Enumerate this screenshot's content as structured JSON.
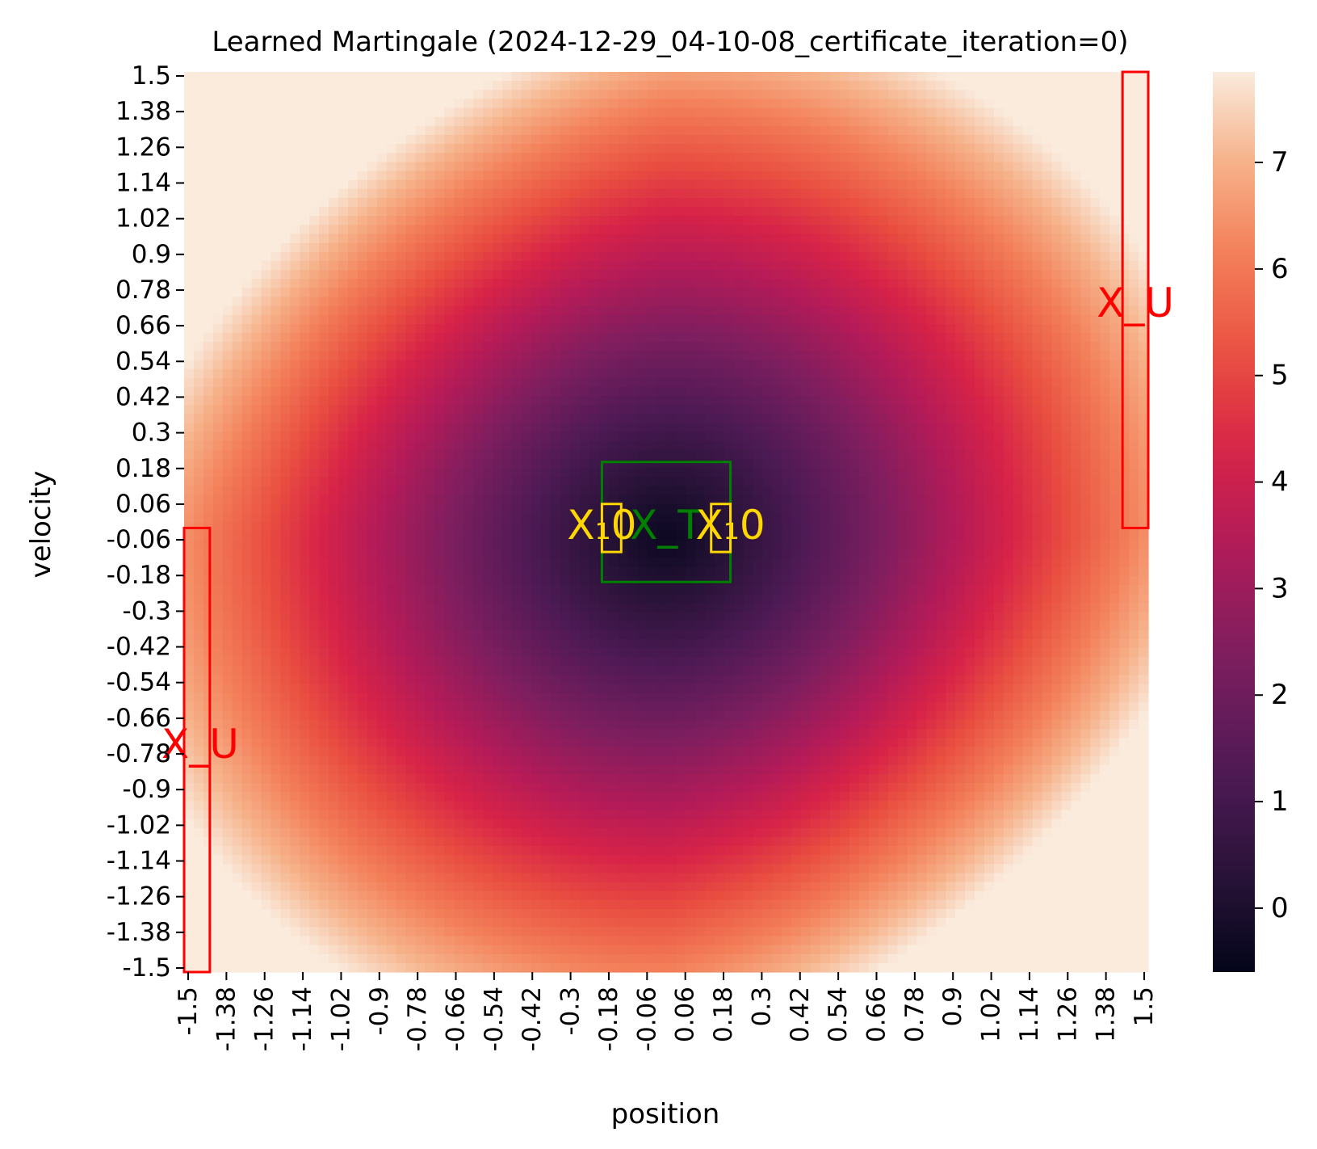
{
  "chart_data": {
    "type": "heatmap",
    "title": "Learned Martingale (2024-12-29_04-10-08_certificate_iteration=0)",
    "xlabel": "position",
    "ylabel": "velocity",
    "x_range": [
      -1.5,
      1.5
    ],
    "y_range": [
      -1.5,
      1.5
    ],
    "x_ticks": [
      "-1.5",
      "-1.38",
      "-1.26",
      "-1.14",
      "-1.02",
      "-0.9",
      "-0.78",
      "-0.66",
      "-0.54",
      "-0.42",
      "-0.3",
      "-0.18",
      "-0.06",
      "0.06",
      "0.18",
      "0.3",
      "0.42",
      "0.54",
      "0.66",
      "0.78",
      "0.9",
      "1.02",
      "1.14",
      "1.26",
      "1.38",
      "1.5"
    ],
    "y_ticks": [
      "1.5",
      "1.38",
      "1.26",
      "1.14",
      "1.02",
      "0.9",
      "0.78",
      "0.66",
      "0.54",
      "0.42",
      "0.3",
      "0.18",
      "0.06",
      "-0.06",
      "-0.18",
      "-0.3",
      "-0.42",
      "-0.54",
      "-0.66",
      "-0.78",
      "-0.9",
      "-1.02",
      "-1.14",
      "-1.26",
      "-1.38",
      "-1.5"
    ],
    "grid": false,
    "colorbar": {
      "min": -0.6,
      "max": 7.85,
      "ticks": [
        "0",
        "1",
        "2",
        "3",
        "4",
        "5",
        "6",
        "7"
      ],
      "colormap": "rocket"
    },
    "value_model": {
      "center": [
        0.0,
        -0.05
      ],
      "scale": [
        1.5,
        1.5
      ],
      "radial_amplitude": 6.8,
      "radial_exponent": 1.15,
      "diagonal_amplitude": 1.1,
      "base": -0.35
    },
    "regions": [
      {
        "label": "X_U",
        "color": "#ff0000",
        "x": [
          -1.5,
          -1.42
        ],
        "y": [
          -1.5,
          -0.02
        ],
        "label_at": [
          -1.45,
          -0.75
        ]
      },
      {
        "label": "X_U",
        "color": "#ff0000",
        "x": [
          1.42,
          1.5
        ],
        "y": [
          -0.02,
          1.5
        ],
        "label_at": [
          1.46,
          0.72
        ]
      },
      {
        "label": "X_T",
        "color": "#008000",
        "x": [
          -0.2,
          0.2
        ],
        "y": [
          -0.2,
          0.2
        ],
        "label_at": [
          0.0,
          -0.02
        ]
      },
      {
        "label": "X₁0",
        "color": "#ffd700",
        "x": [
          -0.2,
          -0.14
        ],
        "y": [
          -0.1,
          0.06
        ],
        "label_at": [
          -0.2,
          -0.02
        ]
      },
      {
        "label": "X₁0",
        "color": "#ffd700",
        "x": [
          0.14,
          0.2
        ],
        "y": [
          -0.1,
          0.06
        ],
        "label_at": [
          0.2,
          -0.02
        ]
      }
    ]
  }
}
